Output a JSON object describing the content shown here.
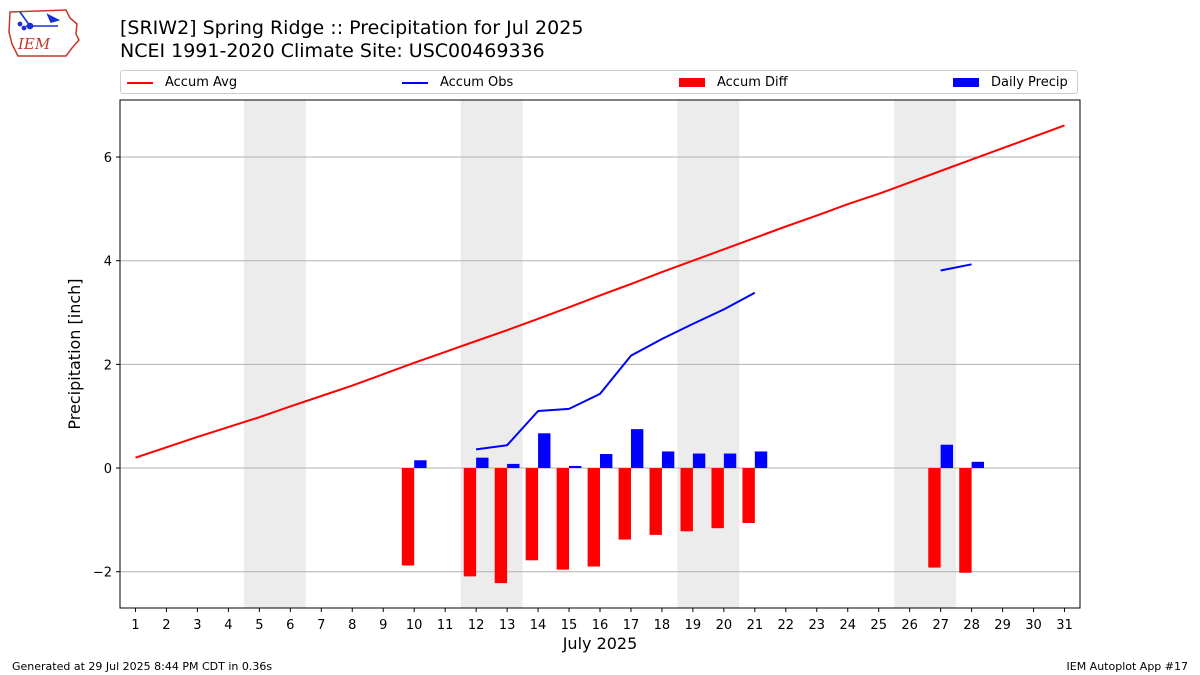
{
  "header": {
    "title_line1": "[SRIW2] Spring Ridge :: Precipitation for Jul 2025",
    "title_line2": "NCEI 1991-2020 Climate Site: USC00469336",
    "logo_text": "IEM"
  },
  "legend": {
    "accum_avg": "Accum Avg",
    "accum_obs": "Accum Obs",
    "accum_diff": "Accum Diff",
    "daily_precip": "Daily Precip"
  },
  "footer": {
    "generated": "Generated at 29 Jul 2025 8:44 PM CDT in 0.36s",
    "app": "IEM Autoplot App #17"
  },
  "chart_data": {
    "type": "bar",
    "xlabel": "July 2025",
    "ylabel": "Precipitation [inch]",
    "xlim": [
      0.5,
      31.5
    ],
    "ylim": [
      -2.7,
      7.1
    ],
    "x_ticks": [
      1,
      2,
      3,
      4,
      5,
      6,
      7,
      8,
      9,
      10,
      11,
      12,
      13,
      14,
      15,
      16,
      17,
      18,
      19,
      20,
      21,
      22,
      23,
      24,
      25,
      26,
      27,
      28,
      29,
      30,
      31
    ],
    "y_ticks": [
      -2,
      0,
      2,
      4,
      6
    ],
    "grid": "horizontal",
    "legend_position": "top",
    "weekend_shading": [
      [
        4.5,
        6.5
      ],
      [
        11.5,
        13.5
      ],
      [
        18.5,
        20.5
      ],
      [
        25.5,
        27.5
      ]
    ],
    "colors": {
      "avg": "#ff0000",
      "obs": "#0000ff",
      "diff": "#ff0000",
      "daily": "#0000ff",
      "shade": "#ececec",
      "grid": "#b0b0b0"
    },
    "series": [
      {
        "name": "Accum Avg",
        "kind": "line",
        "x": [
          1,
          2,
          3,
          4,
          5,
          6,
          7,
          8,
          9,
          10,
          11,
          12,
          13,
          14,
          15,
          16,
          17,
          18,
          19,
          20,
          21,
          22,
          23,
          24,
          25,
          26,
          27,
          28,
          29,
          30,
          31
        ],
        "values": [
          0.2,
          0.4,
          0.6,
          0.79,
          0.98,
          1.19,
          1.39,
          1.59,
          1.81,
          2.03,
          2.24,
          2.45,
          2.66,
          2.88,
          3.1,
          3.33,
          3.55,
          3.78,
          4.0,
          4.22,
          4.44,
          4.66,
          4.87,
          5.09,
          5.29,
          5.51,
          5.73,
          5.95,
          6.17,
          6.39,
          6.61
        ]
      },
      {
        "name": "Accum Obs",
        "kind": "line",
        "x": [
          12,
          13,
          14,
          15,
          16,
          17,
          18,
          19,
          20,
          21,
          null,
          27,
          28
        ],
        "values": [
          0.36,
          0.44,
          1.1,
          1.14,
          1.43,
          2.17,
          2.49,
          2.78,
          3.06,
          3.38,
          null,
          3.81,
          3.93
        ]
      },
      {
        "name": "Accum Diff",
        "kind": "bar",
        "x": [
          10,
          12,
          13,
          14,
          15,
          16,
          17,
          18,
          19,
          20,
          21,
          27,
          28
        ],
        "values": [
          -1.88,
          -2.09,
          -2.22,
          -1.78,
          -1.96,
          -1.9,
          -1.38,
          -1.29,
          -1.22,
          -1.16,
          -1.06,
          -1.92,
          -2.02
        ]
      },
      {
        "name": "Daily Precip",
        "kind": "bar",
        "x": [
          10,
          12,
          13,
          14,
          15,
          16,
          17,
          18,
          19,
          20,
          21,
          27,
          28
        ],
        "values": [
          0.15,
          0.2,
          0.08,
          0.67,
          0.04,
          0.27,
          0.75,
          0.32,
          0.28,
          0.28,
          0.32,
          0.45,
          0.12
        ]
      }
    ]
  }
}
